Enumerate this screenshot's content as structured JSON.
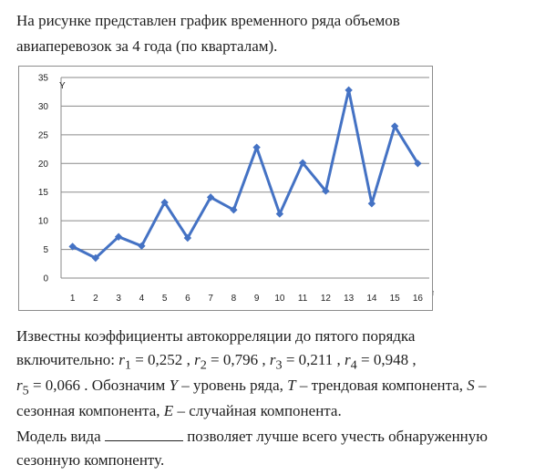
{
  "intro": {
    "line1": "На рисунке представлен график временного ряда объемов",
    "line2": "авиаперевозок за 4 года (по кварталам)."
  },
  "chart_data": {
    "type": "line",
    "x": [
      1,
      2,
      3,
      4,
      5,
      6,
      7,
      8,
      9,
      10,
      11,
      12,
      13,
      14,
      15,
      16
    ],
    "series": [
      {
        "values": [
          5.5,
          3.5,
          7.2,
          5.6,
          13.2,
          7.0,
          14.1,
          11.9,
          22.8,
          11.2,
          20.1,
          15.2,
          32.8,
          13.0,
          26.5,
          20.0
        ]
      }
    ],
    "ylabel": "Y",
    "xlabel": "t",
    "ylim": [
      0,
      35
    ],
    "yticks": [
      "0",
      "5",
      "10",
      "15",
      "20",
      "25",
      "30",
      "35"
    ],
    "xticks": [
      "1",
      "2",
      "3",
      "4",
      "5",
      "6",
      "7",
      "8",
      "9",
      "10",
      "11",
      "12",
      "13",
      "14",
      "15",
      "16"
    ],
    "grid": true,
    "color": "#4472c4"
  },
  "autocorr": {
    "line1": "Известны коэффициенты автокорреляции до пятого порядка",
    "line2_prefix": "включительно: ",
    "r1_label": "r",
    "r1_sub": "1",
    "r1_value": " = 0,252",
    "r2_label": "r",
    "r2_sub": "2",
    "r2_value": " = 0,796",
    "r3_label": "r",
    "r3_sub": "3",
    "r3_value": " = 0,211",
    "r4_label": "r",
    "r4_sub": "4",
    "r4_value": " = 0,948",
    "r5_label": "r",
    "r5_sub": "5",
    "r5_value": " = 0,066",
    "line3_rest": " . Обозначим ",
    "Y": "Y",
    "Y_desc": " – уровень ряда, ",
    "T": "T",
    "T_desc": " – трендовая компонента, ",
    "S": "S",
    "S_desc": " –",
    "line4_prefix": "сезонная компонента, ",
    "E": "E",
    "E_desc": " – случайная компонента."
  },
  "question": {
    "line1_prefix": "Модель вида ",
    "line1_suffix": " позволяет лучше всего учесть обнаруженную",
    "line2": "сезонную компоненту."
  }
}
